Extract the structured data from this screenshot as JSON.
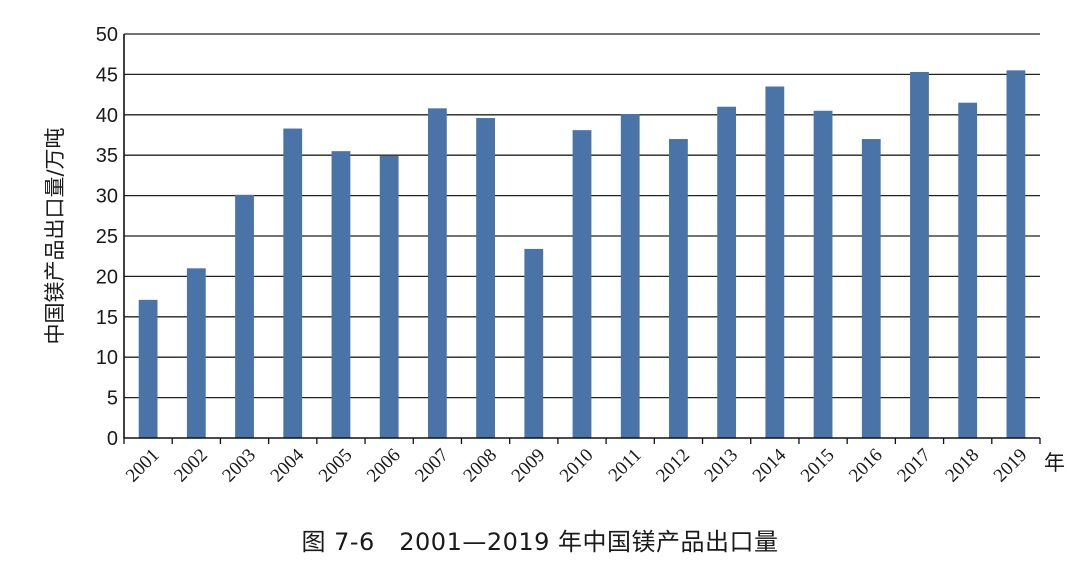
{
  "caption": "图 7-6　2001—2019 年中国镁产品出口量",
  "chart_data": {
    "type": "bar",
    "title": "图 7-6　2001—2019 年中国镁产品出口量",
    "xlabel": "年",
    "ylabel": "中国镁产品出口量/万吨",
    "ylim": [
      0,
      50
    ],
    "ytick_step": 5,
    "grid": true,
    "categories": [
      "2001",
      "2002",
      "2003",
      "2004",
      "2005",
      "2006",
      "2007",
      "2008",
      "2009",
      "2010",
      "2011",
      "2012",
      "2013",
      "2014",
      "2015",
      "2016",
      "2017",
      "2018",
      "2019"
    ],
    "values": [
      17.1,
      21.0,
      30.1,
      38.3,
      35.5,
      34.9,
      40.8,
      39.6,
      23.4,
      38.1,
      40.1,
      37.0,
      41.0,
      43.5,
      40.5,
      37.0,
      45.3,
      41.5,
      45.5
    ],
    "bar_color": "#4a73a8",
    "grid_color": "#222222"
  }
}
